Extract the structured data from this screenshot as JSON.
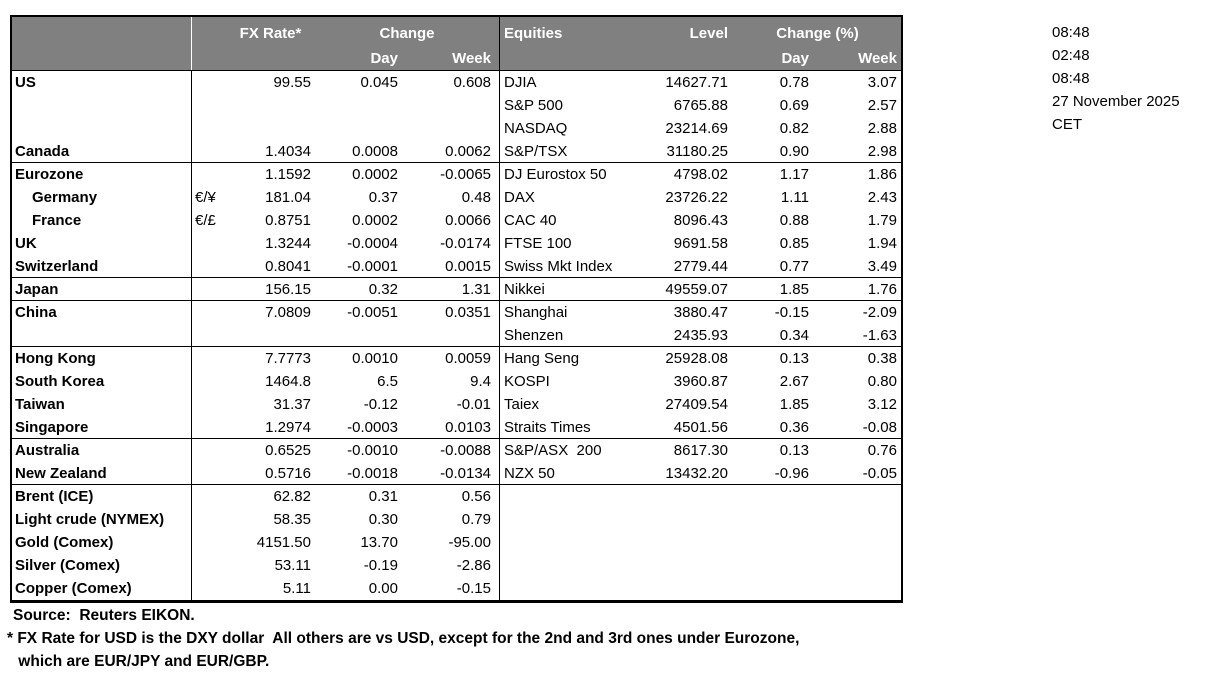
{
  "table": {
    "header": {
      "fx_rate": "FX Rate*",
      "fx_change": "Change",
      "fx_day": "Day",
      "fx_week": "Week",
      "eq_title": "Equities",
      "eq_level": "Level",
      "eq_change": "Change (%)",
      "eq_day": "Day",
      "eq_week": "Week"
    },
    "columns": [
      "fx_label",
      "fx_symbol",
      "fx_rate",
      "fx_change_day",
      "fx_change_week",
      "eq_label",
      "eq_level",
      "eq_change_day",
      "eq_change_week"
    ],
    "rows": [
      [
        "US",
        "",
        "99.55",
        "0.045",
        "0.608",
        "DJIA",
        "14627.71",
        "0.78",
        "3.07"
      ],
      [
        "",
        "",
        "",
        "",
        "",
        "S&P 500",
        "6765.88",
        "0.69",
        "2.57"
      ],
      [
        "",
        "",
        "",
        "",
        "",
        "NASDAQ",
        "23214.69",
        "0.82",
        "2.88"
      ],
      [
        "Canada",
        "",
        "1.4034",
        "0.0008",
        "0.0062",
        "S&P/TSX",
        "31180.25",
        "0.90",
        "2.98"
      ],
      [
        "Eurozone",
        "",
        "1.1592",
        "0.0002",
        "-0.0065",
        "DJ Eurostox 50",
        "4798.02",
        "1.17",
        "1.86"
      ],
      [
        "Germany",
        "€/¥",
        "181.04",
        "0.37",
        "0.48",
        "DAX",
        "23726.22",
        "1.11",
        "2.43"
      ],
      [
        "France",
        "€/£",
        "0.8751",
        "0.0002",
        "0.0066",
        "CAC 40",
        "8096.43",
        "0.88",
        "1.79"
      ],
      [
        "UK",
        "",
        "1.3244",
        "-0.0004",
        "-0.0174",
        "FTSE 100",
        "9691.58",
        "0.85",
        "1.94"
      ],
      [
        "Switzerland",
        "",
        "0.8041",
        "-0.0001",
        "0.0015",
        "Swiss Mkt Index",
        "2779.44",
        "0.77",
        "3.49"
      ],
      [
        "Japan",
        "",
        "156.15",
        "0.32",
        "1.31",
        "Nikkei",
        "49559.07",
        "1.85",
        "1.76"
      ],
      [
        "China",
        "",
        "7.0809",
        "-0.0051",
        "0.0351",
        "Shanghai",
        "3880.47",
        "-0.15",
        "-2.09"
      ],
      [
        "",
        "",
        "",
        "",
        "",
        "Shenzen",
        "2435.93",
        "0.34",
        "-1.63"
      ],
      [
        "Hong Kong",
        "",
        "7.7773",
        "0.0010",
        "0.0059",
        "Hang Seng",
        "25928.08",
        "0.13",
        "0.38"
      ],
      [
        "South Korea",
        "",
        "1464.8",
        "6.5",
        "9.4",
        "KOSPI",
        "3960.87",
        "2.67",
        "0.80"
      ],
      [
        "Taiwan",
        "",
        "31.37",
        "-0.12",
        "-0.01",
        "Taiex",
        "27409.54",
        "1.85",
        "3.12"
      ],
      [
        "Singapore",
        "",
        "1.2974",
        "-0.0003",
        "0.0103",
        "Straits Times",
        "4501.56",
        "0.36",
        "-0.08"
      ],
      [
        "Australia",
        "",
        "0.6525",
        "-0.0010",
        "-0.0088",
        "S&P/ASX  200",
        "8617.30",
        "0.13",
        "0.76"
      ],
      [
        "New Zealand",
        "",
        "0.5716",
        "-0.0018",
        "-0.0134",
        "NZX 50",
        "13432.20",
        "-0.96",
        "-0.05"
      ],
      [
        "Brent (ICE)",
        "",
        "62.82",
        "0.31",
        "0.56",
        "",
        "",
        "",
        ""
      ],
      [
        "Light crude (NYMEX)",
        "",
        "58.35",
        "0.30",
        "0.79",
        "",
        "",
        "",
        ""
      ],
      [
        "Gold (Comex)",
        "",
        "4151.50",
        "13.70",
        "-95.00",
        "",
        "",
        "",
        ""
      ],
      [
        "Silver (Comex)",
        "",
        "53.11",
        "-0.19",
        "-2.86",
        "",
        "",
        "",
        ""
      ],
      [
        "Copper (Comex)",
        "",
        "5.11",
        "0.00",
        "-0.15",
        "",
        "",
        "",
        ""
      ]
    ]
  },
  "side_panel": {
    "lines": [
      "08:48",
      "02:48",
      "08:48",
      "27 November 2025",
      "CET"
    ]
  },
  "footnotes": {
    "source": "Source:  Reuters EIKON.",
    "note1": "* FX Rate for USD is the DXY dollar  All others are vs USD, except for the 2nd and 3rd ones under Eurozone,",
    "note2": " which are EUR/JPY and EUR/GBP."
  },
  "colors": {
    "header_bg": "#808080",
    "header_text": "#ffffff",
    "body_text": "#000000",
    "border": "#000000"
  }
}
